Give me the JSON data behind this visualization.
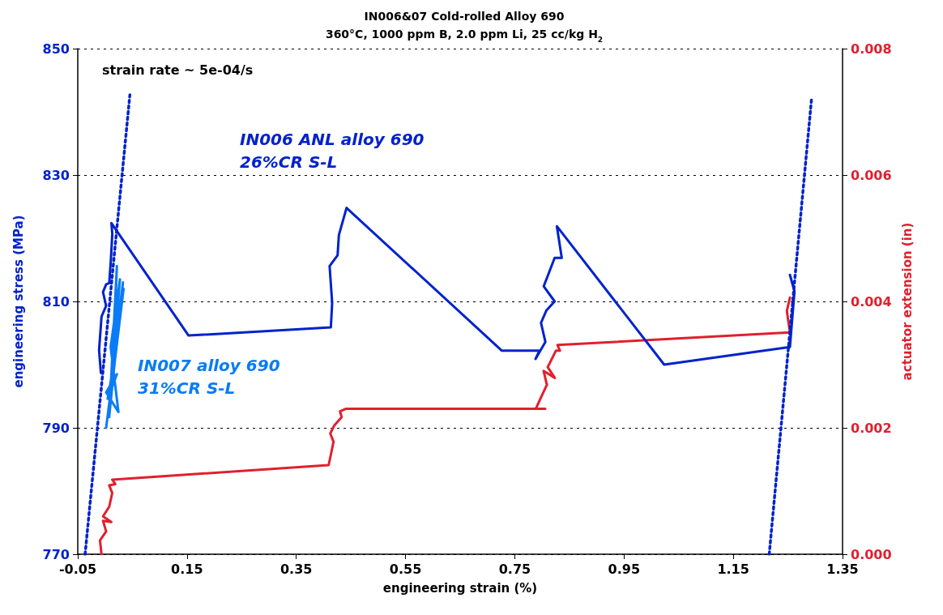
{
  "chart_data": {
    "type": "line",
    "title": "IN006&07 Cold-rolled Alloy 690",
    "subtitle": "360°C, 1000 ppm B, 2.0 ppm Li, 25 cc/kg H$_{2}$",
    "xlabel": "engineering strain (%)",
    "ylabel": "engineering stress (MPa)",
    "y2label": "actuator extension (in)",
    "xlim": [
      -0.05,
      1.35
    ],
    "xticks": [
      -0.05,
      0.15,
      0.35,
      0.55,
      0.75,
      0.95,
      1.15,
      1.35
    ],
    "ylim": [
      770,
      850
    ],
    "yticks": [
      770,
      790,
      810,
      830,
      850
    ],
    "y2lim": [
      0,
      0.008
    ],
    "y2ticks": [
      {
        "value": 0,
        "label": "0.000"
      },
      {
        "value": 0.002,
        "label": "0.002"
      },
      {
        "value": 0.004,
        "label": "0.004"
      },
      {
        "value": 0.006,
        "label": "0.006"
      },
      {
        "value": 0.008,
        "label": "0.008"
      }
    ],
    "grid": "y",
    "marker": "none",
    "line_style": "solid",
    "annotations": [
      "strain rate ~ 5e-04/s"
    ],
    "series": [
      {
        "name": "IN006 ANL alloy 690\n26%CR S-L",
        "color": "#0022cc",
        "x": [
          -0.0077,
          -0.011,
          -0.0065,
          0.0019,
          -0.0038,
          0.002,
          0.0076,
          0.0104,
          0.0132,
          0.0116,
          0.1528,
          0.4133,
          0.4157,
          0.411,
          0.4256,
          0.428,
          0.442,
          0.7264,
          0.795,
          0.788,
          0.806,
          0.798,
          0.808,
          0.823,
          0.803,
          0.823,
          0.836,
          0.827,
          1.0235,
          1.2537,
          1.262,
          1.2537
        ],
        "values": [
          798.7,
          802.3,
          807.6,
          809.3,
          811.5,
          812.7,
          812.9,
          816.3,
          820.7,
          822.4,
          804.6,
          805.9,
          809.8,
          815.6,
          817.3,
          820.5,
          824.8,
          802.2,
          802.2,
          800.9,
          803.6,
          806.6,
          808.6,
          810.0,
          812.4,
          816.9,
          816.9,
          821.9,
          800.0,
          802.8,
          811.6,
          814.2
        ]
      },
      {
        "name": "IN007 alloy 690\n31%CR S-L",
        "color": "#0a7cf5",
        "x": [
          0.0019,
          0.0187,
          0.0047,
          0.0216,
          0.0019,
          0.0244,
          0.0102,
          0.0272,
          0.0159,
          0.0327,
          0.0131,
          0.0216,
          0.0075,
          0.0299,
          0.0149,
          0.0339
        ],
        "values": [
          790.0,
          801.4,
          794.6,
          798.5,
          795.6,
          792.5,
          802.8,
          813.5,
          801.4,
          813.0,
          796.6,
          815.6,
          791.7,
          811.1,
          798.5,
          812.0
        ]
      },
      {
        "color": "#e0202e",
        "axis": "y2",
        "x": [
          -0.0066,
          -0.0093,
          0.0019,
          -0.0038,
          0.0114,
          -0.0038,
          0.0075,
          0.0131,
          0.0075,
          0.0187,
          0.0131,
          0.4092,
          0.4137,
          0.4182,
          0.4122,
          0.4197,
          0.4331,
          0.4301,
          0.4405,
          0.8058,
          0.7884,
          0.7984,
          0.8088,
          0.8028,
          0.8233,
          0.8103,
          0.8252,
          0.8327,
          0.8282,
          1.2537,
          1.2481,
          1.2537
        ],
        "values": [
          0,
          0.00022,
          0.00036,
          0.00053,
          0.00051,
          0.0006,
          0.00075,
          0.00097,
          0.00109,
          0.00111,
          0.00118,
          0.00141,
          0.00159,
          0.00178,
          0.00191,
          0.00204,
          0.00217,
          0.00226,
          0.0023,
          0.0023,
          0.0023,
          0.00249,
          0.00268,
          0.0029,
          0.00279,
          0.00296,
          0.00322,
          0.00322,
          0.00331,
          0.00351,
          0.00385,
          0.00406
        ]
      },
      {
        "color": "#0022cc",
        "line_style": "dotted",
        "x": [
          -0.0366,
          0.0454
        ],
        "values": [
          770,
          842.7
        ]
      },
      {
        "color": "#0022cc",
        "line_style": "dotted",
        "x": [
          1.2158,
          1.2934
        ],
        "values": [
          770,
          842.2
        ]
      }
    ]
  }
}
